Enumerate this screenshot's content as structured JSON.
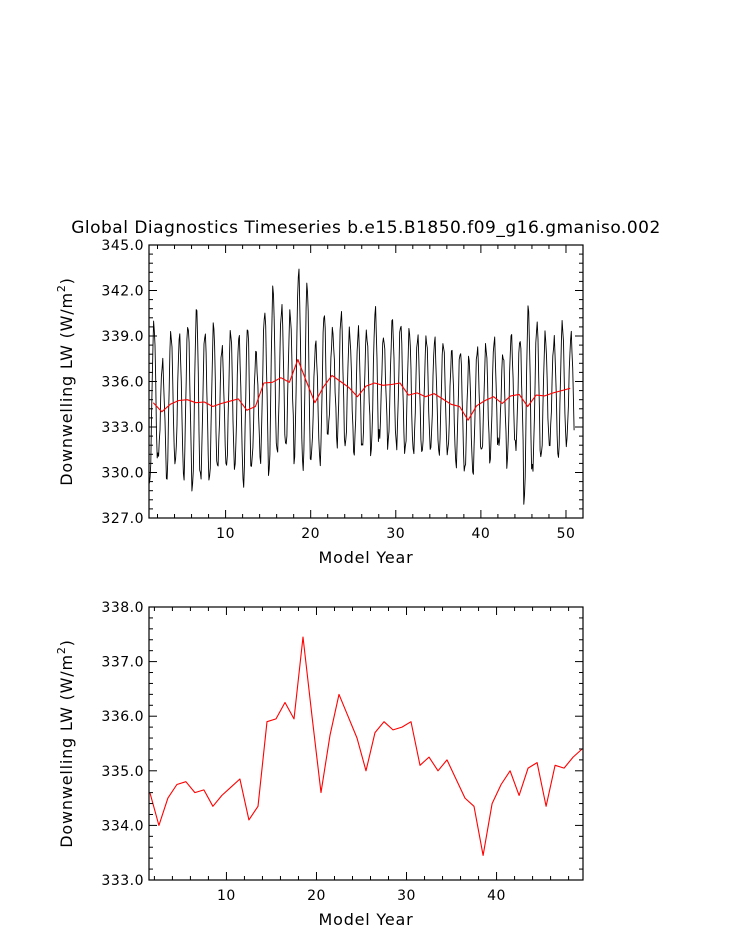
{
  "figure_title": "Global Diagnostics Timeseries b.e15.B1850.f09_g16.gmaniso.002",
  "colors": {
    "monthly": "#000000",
    "annual": "#ff0000"
  },
  "chart_data": [
    {
      "type": "line",
      "xlabel": "Model Year",
      "ylabel_main": "Downwelling LW (W/m",
      "ylabel_sup": "2",
      "ylabel_tail": ")",
      "xlim": [
        1,
        52
      ],
      "ylim": [
        327.0,
        345.0
      ],
      "xticks": [
        10,
        20,
        30,
        40,
        50
      ],
      "xtick_labels": [
        "10",
        "20",
        "30",
        "40",
        "50"
      ],
      "yticks": [
        327.0,
        330.0,
        333.0,
        336.0,
        339.0,
        342.0,
        345.0
      ],
      "ytick_labels": [
        "327.0",
        "330.0",
        "333.0",
        "336.0",
        "339.0",
        "342.0",
        "345.0"
      ],
      "series": [
        {
          "role": "monthly",
          "color": "#000000",
          "x_start": 1.0417,
          "x_step": 0.08333,
          "count": 600,
          "seasonal_amplitude": [
            5.5,
            3.0,
            5.0,
            4.0,
            5.2,
            6.0,
            4.8,
            5.3,
            3.8,
            4.6,
            4.2,
            5.6,
            3.4,
            4.8,
            6.0,
            4.9,
            4.3,
            6.2,
            6.4,
            4.1,
            4.6,
            3.2,
            4.4,
            3.9,
            4.2,
            3.6,
            4.8,
            3.2,
            4.3,
            3.9,
            4.4,
            3.6,
            4.1,
            3.4,
            4.0,
            3.3,
            4.0,
            3.8,
            4.0,
            3.4,
            4.0,
            3.1,
            4.1,
            3.7,
            6.5,
            4.8,
            3.9,
            3.6,
            4.3,
            3.7
          ],
          "peak_phase_months": 6.5
        },
        {
          "role": "annual",
          "color": "#ff0000",
          "x": [
            1.5,
            2.5,
            3.5,
            4.5,
            5.5,
            6.5,
            7.5,
            8.5,
            9.5,
            10.5,
            11.5,
            12.5,
            13.5,
            14.5,
            15.5,
            16.5,
            17.5,
            18.5,
            19.5,
            20.5,
            21.5,
            22.5,
            23.5,
            24.5,
            25.5,
            26.5,
            27.5,
            28.5,
            29.5,
            30.5,
            31.5,
            32.5,
            33.5,
            34.5,
            35.5,
            36.5,
            37.5,
            38.5,
            39.5,
            40.5,
            41.5,
            42.5,
            43.5,
            44.5,
            45.5,
            46.5,
            47.5,
            48.5,
            49.5,
            50.5
          ],
          "values": [
            334.6,
            334.0,
            334.5,
            334.75,
            334.8,
            334.6,
            334.65,
            334.35,
            334.55,
            334.7,
            334.85,
            334.1,
            334.35,
            335.9,
            335.95,
            336.25,
            335.95,
            337.45,
            336.0,
            334.6,
            335.65,
            336.4,
            336.0,
            335.6,
            335.0,
            335.7,
            335.9,
            335.75,
            335.8,
            335.9,
            335.1,
            335.25,
            335.0,
            335.2,
            334.85,
            334.5,
            334.35,
            333.45,
            334.4,
            334.75,
            335.0,
            334.55,
            335.05,
            335.15,
            334.35,
            335.1,
            335.05,
            335.25,
            335.4,
            335.55
          ]
        }
      ]
    },
    {
      "type": "line",
      "xlabel": "Model Year",
      "ylabel_main": "Downwelling LW (W/m",
      "ylabel_sup": "2",
      "ylabel_tail": ")",
      "xlim": [
        1.4,
        49.6
      ],
      "ylim": [
        333.0,
        338.0
      ],
      "xticks": [
        10,
        20,
        30,
        40
      ],
      "xtick_labels": [
        "10",
        "20",
        "30",
        "40"
      ],
      "yticks": [
        333.0,
        334.0,
        335.0,
        336.0,
        337.0,
        338.0
      ],
      "ytick_labels": [
        "333.0",
        "334.0",
        "335.0",
        "336.0",
        "337.0",
        "338.0"
      ],
      "series": [
        {
          "role": "annual",
          "color": "#ff0000",
          "x": [
            1.5,
            2.5,
            3.5,
            4.5,
            5.5,
            6.5,
            7.5,
            8.5,
            9.5,
            10.5,
            11.5,
            12.5,
            13.5,
            14.5,
            15.5,
            16.5,
            17.5,
            18.5,
            19.5,
            20.5,
            21.5,
            22.5,
            23.5,
            24.5,
            25.5,
            26.5,
            27.5,
            28.5,
            29.5,
            30.5,
            31.5,
            32.5,
            33.5,
            34.5,
            35.5,
            36.5,
            37.5,
            38.5,
            39.5,
            40.5,
            41.5,
            42.5,
            43.5,
            44.5,
            45.5,
            46.5,
            47.5,
            48.5,
            49.5
          ],
          "values": [
            334.6,
            334.0,
            334.5,
            334.75,
            334.8,
            334.6,
            334.65,
            334.35,
            334.55,
            334.7,
            334.85,
            334.1,
            334.35,
            335.9,
            335.95,
            336.25,
            335.95,
            337.45,
            336.0,
            334.6,
            335.65,
            336.4,
            336.0,
            335.6,
            335.0,
            335.7,
            335.9,
            335.75,
            335.8,
            335.9,
            335.1,
            335.25,
            335.0,
            335.2,
            334.85,
            334.5,
            334.35,
            333.45,
            334.4,
            334.75,
            335.0,
            334.55,
            335.05,
            335.15,
            334.35,
            335.1,
            335.05,
            335.25,
            335.4
          ]
        }
      ]
    }
  ]
}
